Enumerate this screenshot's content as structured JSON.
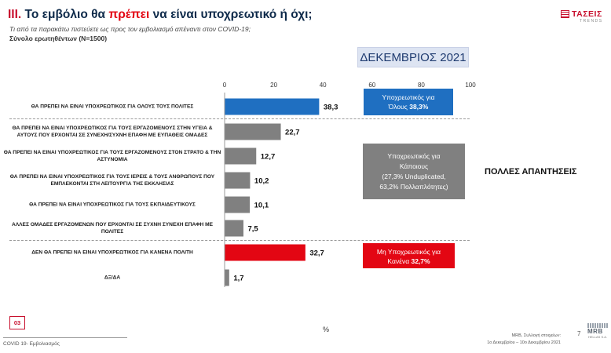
{
  "header": {
    "title_num": "III.",
    "title_pre": " Το εμβόλιο θα ",
    "title_hl": "πρέπει",
    "title_post": " να είναι υποχρεωτικό ή όχι;",
    "subtitle": "Τι από τα παρακάτω πιστεύετε ως προς τον εμβολιασμό απέναντι στον COVID-19;",
    "sample": "Σύνολο ερωτηθέντων (Ν=1500)",
    "logo_brand": "ΤΑΣΕΙΣ",
    "logo_sub": "TRENDS",
    "month": "ΔΕΚΕΜΒΡΙΟΣ 2021"
  },
  "colors": {
    "blue": "#1f6fc1",
    "gray": "#808080",
    "red": "#e30613"
  },
  "chart_data": {
    "type": "bar",
    "orientation": "horizontal",
    "xlim": [
      0,
      100
    ],
    "xticks": [
      "0",
      "20",
      "40",
      "60",
      "80",
      "100"
    ],
    "xlabel": "%",
    "categories": [
      "ΘΑ ΠΡΕΠΕΙ ΝΑ ΕΙΝΑΙ ΥΠΟΧΡΕΩΤΙΚΟΣ ΓΙΑ ΟΛΟΥΣ ΤΟΥΣ ΠΟΛΙΤΕΣ",
      "ΘΑ ΠΡΕΠΕΙ ΝΑ ΕΙΝΑΙ ΥΠΟΧΡΕΩΤΙΚΟΣ ΓΙΑ ΤΟΥΣ ΕΡΓΑΖΟΜΕΝΟΥΣ ΣΤΗΝ ΥΓΕΙΑ & ΑΥΤΟΥΣ ΠΟΥ ΕΡΧΟΝΤΑΙ ΣΕ ΣΥΝΕΧΗ/ΣΥΧΝΗ ΕΠΑΦΗ ΜΕ ΕΥΠΑΘΕΙΣ ΟΜΑΔΕΣ",
      "ΘΑ ΠΡΕΠΕΙ ΝΑ ΕΙΝΑΙ ΥΠΟΧΡΕΩΤΙΚΟΣ ΓΙΑ ΤΟΥΣ ΕΡΓΑΖΟΜΕΝΟΥΣ ΣΤΟΝ ΣΤΡΑΤΟ & ΤΗΝ ΑΣΤΥΝΟΜΙΑ",
      "ΘΑ ΠΡΕΠΕΙ ΝΑ ΕΙΝΑΙ ΥΠΟΧΡΕΩΤΙΚΟΣ ΓΙΑ ΤΟΥΣ ΙΕΡΕΙΣ & ΤΟΥΣ ΑΝΘΡΩΠΟΥΣ ΠΟΥ ΕΜΠΛΕΚΟΝΤΑΙ ΣΤΗ ΛΕΙΤΟΥΡΓΙΑ ΤΗΣ ΕΚΚΛΗΣΙΑΣ",
      "ΘΑ ΠΡΕΠΕΙ ΝΑ ΕΙΝΑΙ ΥΠΟΧΡΕΩΤΙΚΟΣ ΓΙΑ ΤΟΥΣ ΕΚΠΑΙΔΕΥΤΙΚΟΥΣ",
      "ΑΛΛΕΣ ΟΜΑΔΕΣ ΕΡΓΑΖΟΜΕΝΩΝ ΠΟΥ ΕΡΧΟΝΤΑΙ ΣΕ ΣΥΧΝΗ ΣΥΝΕΧΗ ΕΠΑΦΗ ΜΕ ΠΟΛΙΤΕΣ",
      "ΔΕΝ ΘΑ ΠΡΕΠΕΙ ΝΑ ΕΙΝΑΙ ΥΠΟΧΡΕΩΤΙΚΟΣ ΓΙΑ ΚΑΝΕΝΑ ΠΟΛΙΤΗ",
      "ΔΞ/ΔΑ"
    ],
    "values": [
      38.3,
      22.7,
      12.7,
      10.2,
      10.1,
      7.5,
      32.7,
      1.7
    ],
    "value_labels": [
      "38,3",
      "22,7",
      "12,7",
      "10,2",
      "10,1",
      "7,5",
      "32,7",
      "1,7"
    ],
    "bar_colors": [
      "#1f6fc1",
      "#808080",
      "#808080",
      "#808080",
      "#808080",
      "#808080",
      "#e30613",
      "#808080"
    ]
  },
  "callouts": {
    "blue_line1": "Υποχρεωτικός για",
    "blue_line2_pre": "Όλους ",
    "blue_line2_val": "38,3%",
    "gray_line1": "Υποχρεωτικός για",
    "gray_line2": "Κάποιους",
    "gray_line3": "(27,3% Unduplicated,",
    "gray_line4": "63,2% Πολλαπλότητες)",
    "red_line1": "Μη Υποχρεωτικός για",
    "red_line2_pre": "Κανένα ",
    "red_line2_val": "32,7%",
    "many_answers": "ΠΟΛΛΕΣ ΑΠΑΝΤΗΣΕΙΣ"
  },
  "footer": {
    "page_box": "03",
    "left": "COVID 19- Εμβολιασμός",
    "right_line1": "MRB, Συλλογή στοιχείων:",
    "right_line2": "1ο Δεκεμβρίου – 10ο Δεκεμβρίου 2021",
    "page_num": "7",
    "mrb_logo": "MRB",
    "mrb_sub": "HELLAS S.A."
  }
}
